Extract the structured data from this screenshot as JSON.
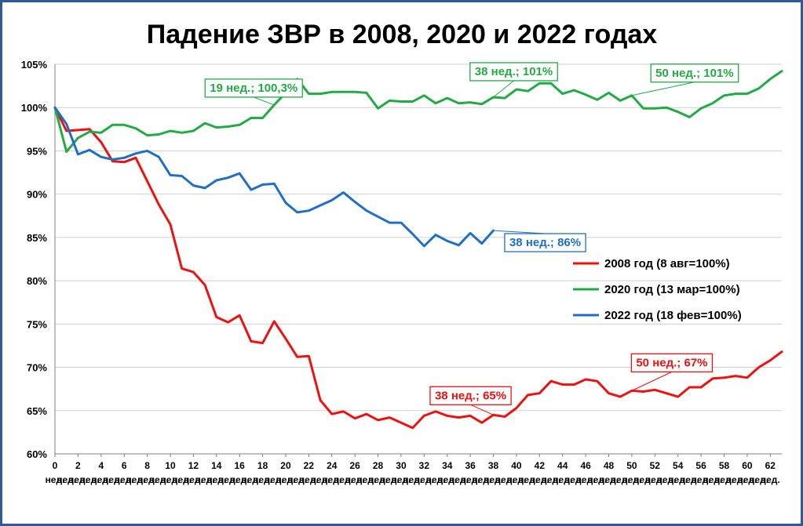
{
  "chart_data": {
    "type": "line",
    "title": "Падение ЗВР в 2008, 2020 и 2022 годах",
    "xlabel": "",
    "ylabel": "",
    "ylim": [
      60,
      105
    ],
    "yticks": [
      "60%",
      "65%",
      "70%",
      "75%",
      "80%",
      "85%",
      "90%",
      "95%",
      "100%",
      "105%"
    ],
    "ytick_values": [
      60,
      65,
      70,
      75,
      80,
      85,
      90,
      95,
      100,
      105
    ],
    "xlim": [
      0,
      63
    ],
    "xticks": [
      0,
      2,
      4,
      6,
      8,
      10,
      12,
      14,
      16,
      18,
      20,
      22,
      24,
      26,
      28,
      30,
      32,
      34,
      36,
      38,
      40,
      42,
      44,
      46,
      48,
      50,
      52,
      54,
      56,
      58,
      60,
      62
    ],
    "xtick_unit": "нед.",
    "grid": true,
    "legend_position": "right",
    "series": [
      {
        "name": "2008 год (8 авг=100%)",
        "color": "#ee1111",
        "values": [
          100,
          97.3,
          97.4,
          97.5,
          96.0,
          93.8,
          93.7,
          94.2,
          91.5,
          88.8,
          86.5,
          81.4,
          81.0,
          79.5,
          75.8,
          75.2,
          76.0,
          73.0,
          72.8,
          75.3,
          73.3,
          71.2,
          71.3,
          66.2,
          64.6,
          64.9,
          64.1,
          64.6,
          63.9,
          64.2,
          63.6,
          63.0,
          64.4,
          64.9,
          64.4,
          64.2,
          64.4,
          63.6,
          64.5,
          64.3,
          65.3,
          66.8,
          67.0,
          68.4,
          68.0,
          68.0,
          68.6,
          68.4,
          67.0,
          66.6,
          67.3,
          67.2,
          67.4,
          67.0,
          66.6,
          67.7,
          67.7,
          68.7,
          68.8,
          69.0,
          68.8,
          70.0,
          70.8,
          71.8
        ]
      },
      {
        "name": "2020 год (13 мар=100%)",
        "color": "#22aa44",
        "values": [
          100,
          94.9,
          96.5,
          97.2,
          97.1,
          98.0,
          98.0,
          97.6,
          96.8,
          96.9,
          97.3,
          97.1,
          97.3,
          98.2,
          97.7,
          97.8,
          98.0,
          98.8,
          98.8,
          100.3,
          101.7,
          103.3,
          101.6,
          101.6,
          101.8,
          101.8,
          101.8,
          101.7,
          99.9,
          100.8,
          100.7,
          100.7,
          101.4,
          100.5,
          101.1,
          100.5,
          100.6,
          100.4,
          101.2,
          101.1,
          102.1,
          101.9,
          102.8,
          102.8,
          101.6,
          102.0,
          101.5,
          100.9,
          101.7,
          100.8,
          101.4,
          99.9,
          99.9,
          100.0,
          99.5,
          98.9,
          99.9,
          100.5,
          101.4,
          101.6,
          101.6,
          102.2,
          103.3,
          104.2
        ]
      },
      {
        "name": "2022 год (18 фев=100%)",
        "color": "#1f6fc4",
        "values": [
          100,
          98.1,
          94.6,
          95.1,
          94.3,
          94.0,
          94.2,
          94.7,
          95.0,
          94.3,
          92.2,
          92.1,
          91.0,
          90.7,
          91.6,
          91.9,
          92.4,
          90.5,
          91.1,
          91.2,
          89.0,
          87.9,
          88.1,
          88.7,
          89.3,
          90.2,
          89.1,
          88.1,
          87.4,
          86.7,
          86.7,
          85.4,
          84.0,
          85.3,
          84.6,
          84.1,
          85.5,
          84.3,
          85.8
        ]
      }
    ],
    "annotations": [
      {
        "text": "19 нед.; 100,3%",
        "series": 1,
        "x": 19,
        "color": "#22aa44"
      },
      {
        "text": "38 нед.; 101%",
        "series": 1,
        "x": 38,
        "color": "#22aa44"
      },
      {
        "text": "50 нед.; 101%",
        "series": 1,
        "x": 50,
        "color": "#22aa44"
      },
      {
        "text": "38 нед.; 86%",
        "series": 2,
        "x": 38,
        "color": "#1f6fc4"
      },
      {
        "text": "38 нед.; 65%",
        "series": 0,
        "x": 38,
        "color": "#ee1111"
      },
      {
        "text": "50 нед.; 67%",
        "series": 0,
        "x": 50,
        "color": "#ee1111"
      }
    ]
  }
}
